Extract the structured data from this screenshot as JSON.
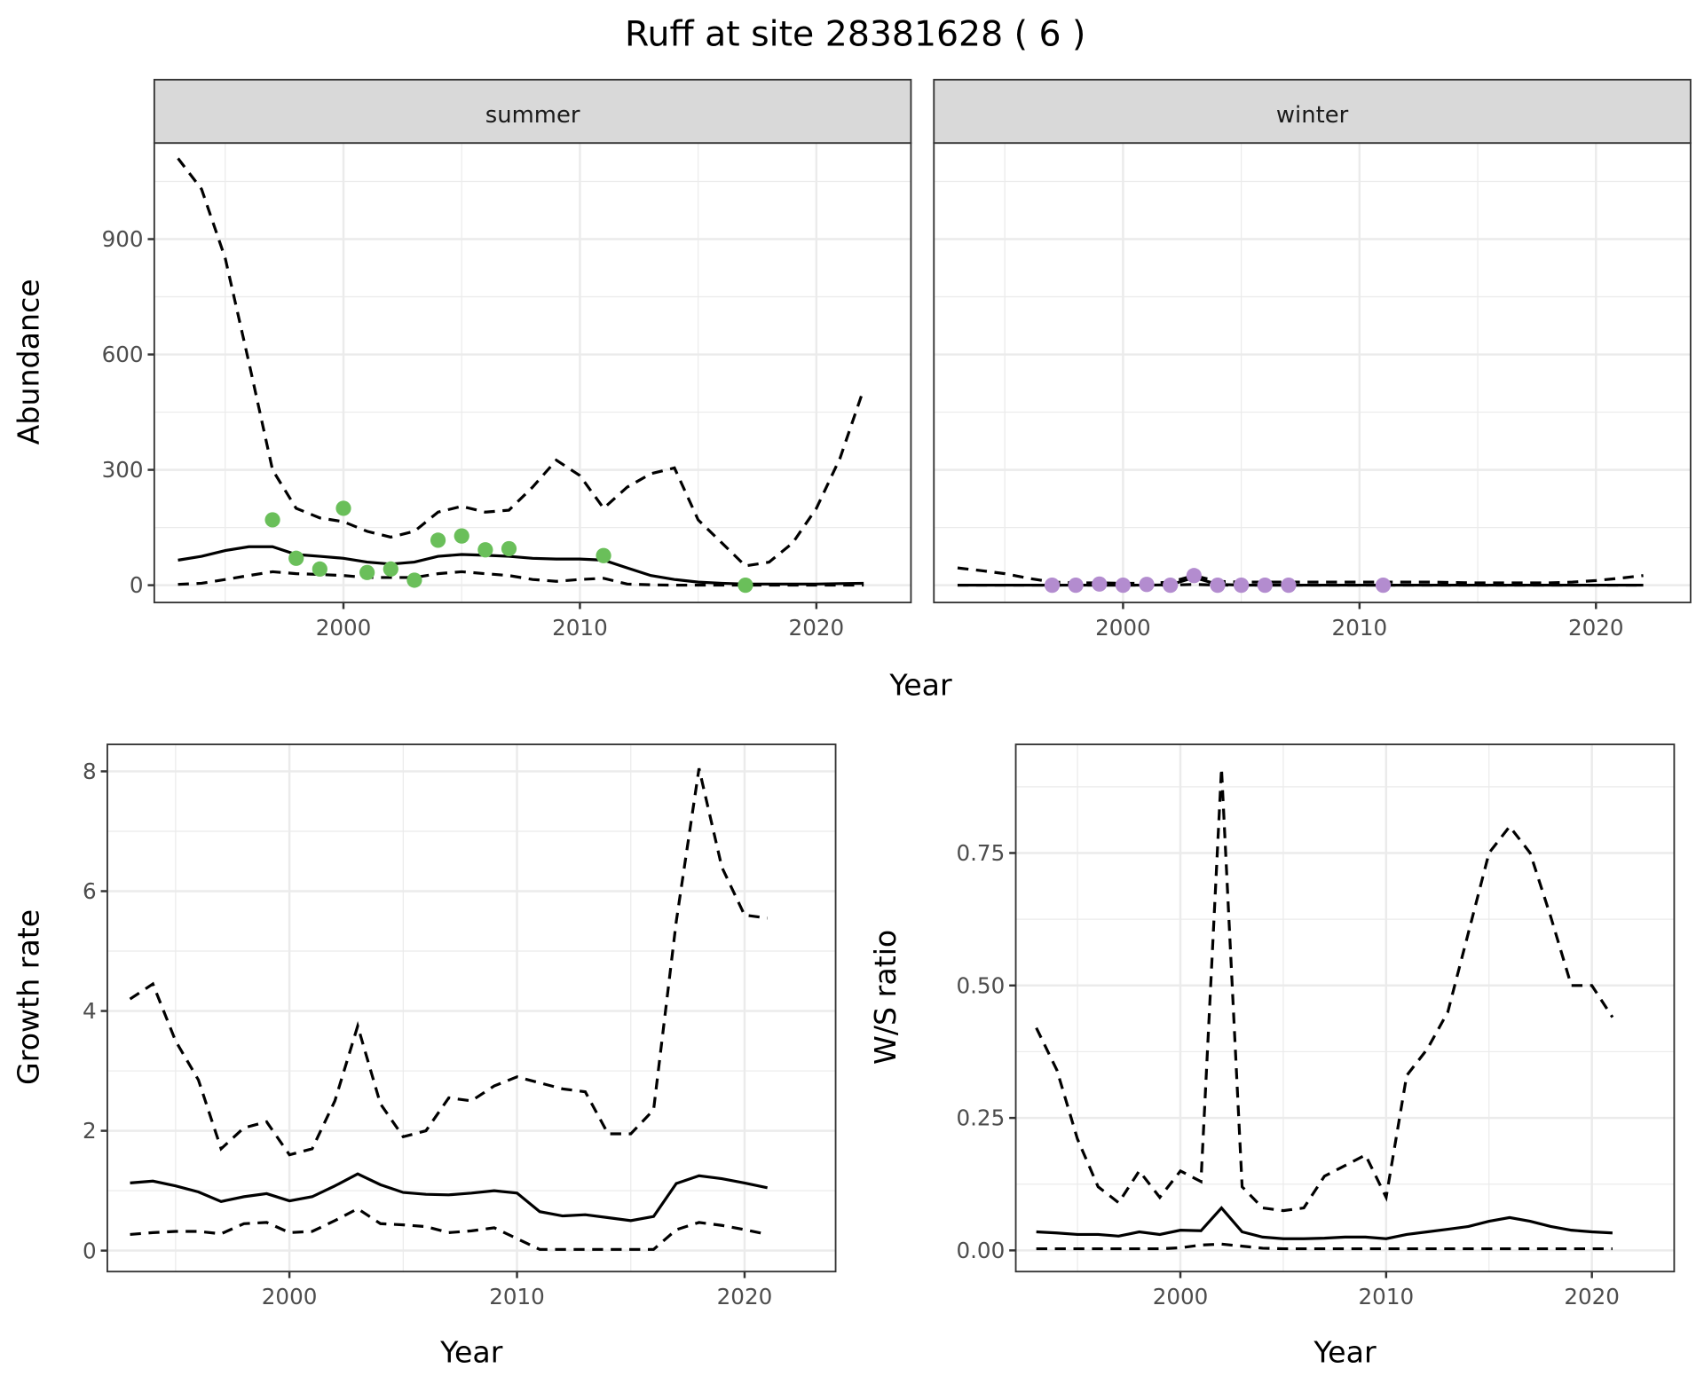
{
  "title": "Ruff at site 28381628 ( 6 )",
  "colors": {
    "summer": "#6abf5a",
    "winter": "#b38ccf"
  },
  "chart_data": [
    {
      "type": "line",
      "facet": "summer",
      "xlabel": "Year",
      "ylabel": "Abundance",
      "xlim": [
        1992,
        2024
      ],
      "ylim": [
        -45,
        1150
      ],
      "xticks": [
        2000,
        2010,
        2020
      ],
      "yticks": [
        0,
        300,
        600,
        900
      ],
      "x": [
        1993,
        1994,
        1995,
        1996,
        1997,
        1998,
        1999,
        2000,
        2001,
        2002,
        2003,
        2004,
        2005,
        2006,
        2007,
        2008,
        2009,
        2010,
        2011,
        2012,
        2013,
        2014,
        2015,
        2016,
        2017,
        2018,
        2019,
        2020,
        2021,
        2022
      ],
      "series": [
        {
          "name": "upper",
          "style": "dashed",
          "values": [
            1110,
            1030,
            850,
            580,
            300,
            200,
            175,
            165,
            140,
            125,
            140,
            190,
            205,
            190,
            195,
            255,
            325,
            285,
            200,
            255,
            290,
            305,
            170,
            110,
            50,
            60,
            110,
            200,
            330,
            510
          ]
        },
        {
          "name": "mean",
          "style": "solid",
          "values": [
            65,
            75,
            90,
            100,
            100,
            80,
            75,
            70,
            60,
            55,
            60,
            75,
            80,
            78,
            75,
            70,
            68,
            68,
            65,
            45,
            25,
            15,
            8,
            5,
            3,
            3,
            3,
            3,
            4,
            5
          ]
        },
        {
          "name": "lower",
          "style": "dashed",
          "values": [
            2,
            5,
            15,
            25,
            35,
            30,
            28,
            25,
            20,
            20,
            20,
            30,
            35,
            30,
            25,
            15,
            10,
            15,
            18,
            3,
            1,
            0,
            0,
            0,
            0,
            0,
            0,
            0,
            0,
            0
          ]
        }
      ],
      "points": {
        "x": [
          1997,
          1998,
          1999,
          2000,
          2001,
          2002,
          2003,
          2004,
          2005,
          2006,
          2007,
          2011,
          2017
        ],
        "y": [
          170,
          70,
          42,
          200,
          33,
          42,
          13,
          117,
          128,
          92,
          95,
          77,
          0
        ]
      }
    },
    {
      "type": "line",
      "facet": "winter",
      "xlabel": "Year",
      "ylabel": "Abundance",
      "xlim": [
        1992,
        2024
      ],
      "ylim": [
        -45,
        1150
      ],
      "xticks": [
        2000,
        2010,
        2020
      ],
      "yticks": [
        0,
        300,
        600,
        900
      ],
      "x": [
        1993,
        1994,
        1995,
        1996,
        1997,
        1998,
        1999,
        2000,
        2001,
        2002,
        2003,
        2004,
        2005,
        2006,
        2007,
        2008,
        2009,
        2010,
        2011,
        2012,
        2013,
        2014,
        2015,
        2016,
        2017,
        2018,
        2019,
        2020,
        2021,
        2022
      ],
      "series": [
        {
          "name": "upper",
          "style": "dashed",
          "values": [
            45,
            38,
            30,
            18,
            8,
            6,
            6,
            5,
            5,
            8,
            25,
            10,
            8,
            8,
            8,
            8,
            8,
            8,
            8,
            8,
            8,
            7,
            6,
            6,
            6,
            6,
            8,
            12,
            18,
            25
          ]
        },
        {
          "name": "mean",
          "style": "solid",
          "values": [
            0,
            0,
            0,
            0,
            0,
            0,
            0,
            0,
            0,
            1,
            20,
            2,
            0,
            0,
            0,
            0,
            0,
            0,
            0,
            0,
            0,
            0,
            0,
            0,
            0,
            0,
            0,
            0,
            0,
            0
          ]
        },
        {
          "name": "lower",
          "style": "dashed",
          "values": [
            0,
            0,
            0,
            0,
            0,
            0,
            0,
            0,
            0,
            0,
            2,
            0,
            0,
            0,
            0,
            0,
            0,
            0,
            0,
            0,
            0,
            0,
            0,
            0,
            0,
            0,
            0,
            0,
            0,
            0
          ]
        }
      ],
      "points": {
        "x": [
          1997,
          1998,
          1999,
          2000,
          2001,
          2002,
          2003,
          2004,
          2005,
          2006,
          2007,
          2011
        ],
        "y": [
          0,
          0,
          3,
          0,
          2,
          0,
          25,
          0,
          0,
          0,
          0,
          0
        ]
      }
    },
    {
      "type": "line",
      "xlabel": "Year",
      "ylabel": "Growth rate",
      "xlim": [
        1992,
        2024
      ],
      "ylim": [
        -0.35,
        8.45
      ],
      "xticks": [
        2000,
        2010,
        2020
      ],
      "yticks": [
        0,
        2,
        4,
        6,
        8
      ],
      "x": [
        1993,
        1994,
        1995,
        1996,
        1997,
        1998,
        1999,
        2000,
        2001,
        2002,
        2003,
        2004,
        2005,
        2006,
        2007,
        2008,
        2009,
        2010,
        2011,
        2012,
        2013,
        2014,
        2015,
        2016,
        2017,
        2018,
        2019,
        2020,
        2021
      ],
      "series": [
        {
          "name": "upper",
          "style": "dashed",
          "values": [
            4.2,
            4.45,
            3.5,
            2.85,
            1.7,
            2.05,
            2.15,
            1.6,
            1.7,
            2.5,
            3.75,
            2.45,
            1.9,
            2.0,
            2.55,
            2.5,
            2.75,
            2.9,
            2.8,
            2.7,
            2.65,
            1.95,
            1.95,
            2.35,
            5.5,
            8.05,
            6.4,
            5.6,
            5.55
          ]
        },
        {
          "name": "mean",
          "style": "solid",
          "values": [
            1.13,
            1.16,
            1.08,
            0.98,
            0.82,
            0.9,
            0.95,
            0.83,
            0.9,
            1.08,
            1.28,
            1.1,
            0.97,
            0.94,
            0.93,
            0.96,
            1.0,
            0.96,
            0.65,
            0.58,
            0.6,
            0.55,
            0.5,
            0.57,
            1.12,
            1.25,
            1.2,
            1.13,
            1.05
          ]
        },
        {
          "name": "lower",
          "style": "dashed",
          "values": [
            0.27,
            0.3,
            0.32,
            0.32,
            0.28,
            0.45,
            0.47,
            0.3,
            0.32,
            0.5,
            0.7,
            0.45,
            0.43,
            0.4,
            0.3,
            0.33,
            0.38,
            0.2,
            0.02,
            0.02,
            0.02,
            0.02,
            0.02,
            0.02,
            0.35,
            0.47,
            0.42,
            0.35,
            0.27
          ]
        }
      ]
    },
    {
      "type": "line",
      "xlabel": "Year",
      "ylabel": "W/S ratio",
      "xlim": [
        1992,
        2024
      ],
      "ylim": [
        -0.04,
        0.955
      ],
      "xticks": [
        2000,
        2010,
        2020
      ],
      "yticks": [
        0,
        0.25,
        0.5,
        0.75
      ],
      "yticklabels": [
        "0.00",
        "0.25",
        "0.50",
        "0.75"
      ],
      "x": [
        1993,
        1994,
        1995,
        1996,
        1997,
        1998,
        1999,
        2000,
        2001,
        2002,
        2003,
        2004,
        2005,
        2006,
        2007,
        2008,
        2009,
        2010,
        2011,
        2012,
        2013,
        2014,
        2015,
        2016,
        2017,
        2018,
        2019,
        2020,
        2021
      ],
      "series": [
        {
          "name": "upper",
          "style": "dashed",
          "values": [
            0.42,
            0.34,
            0.21,
            0.12,
            0.09,
            0.15,
            0.1,
            0.15,
            0.13,
            0.91,
            0.12,
            0.08,
            0.075,
            0.08,
            0.14,
            0.16,
            0.18,
            0.1,
            0.33,
            0.38,
            0.45,
            0.6,
            0.75,
            0.8,
            0.75,
            0.63,
            0.5,
            0.5,
            0.44
          ]
        },
        {
          "name": "mean",
          "style": "solid",
          "values": [
            0.035,
            0.033,
            0.03,
            0.03,
            0.027,
            0.035,
            0.03,
            0.038,
            0.037,
            0.08,
            0.035,
            0.025,
            0.022,
            0.022,
            0.023,
            0.025,
            0.025,
            0.022,
            0.03,
            0.035,
            0.04,
            0.045,
            0.055,
            0.062,
            0.055,
            0.045,
            0.038,
            0.035,
            0.033
          ]
        },
        {
          "name": "lower",
          "style": "dashed",
          "values": [
            0.003,
            0.003,
            0.003,
            0.003,
            0.003,
            0.003,
            0.003,
            0.005,
            0.01,
            0.012,
            0.008,
            0.004,
            0.003,
            0.003,
            0.003,
            0.003,
            0.003,
            0.003,
            0.003,
            0.003,
            0.003,
            0.003,
            0.003,
            0.003,
            0.003,
            0.003,
            0.003,
            0.003,
            0.003
          ]
        }
      ]
    }
  ]
}
